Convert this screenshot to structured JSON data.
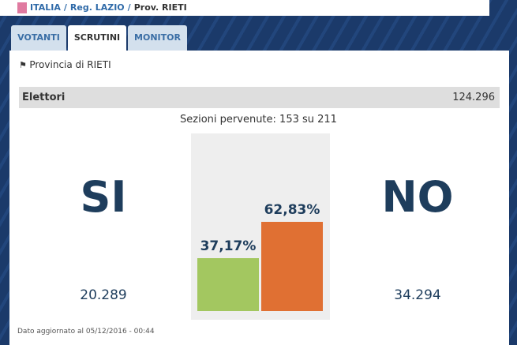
{
  "breadcrumb": [
    "ITALIA",
    "/",
    "Reg. LAZIO",
    "/",
    "Prov. RIETI"
  ],
  "tabs": [
    "VOTANTI",
    "SCRUTINI",
    "MONITOR"
  ],
  "province": "Provincia di RIETI",
  "electors": {
    "label": "Elettori",
    "value": "124.296"
  },
  "sections": "Sezioni pervenute: 153 su 211",
  "chart_data": {
    "type": "bar",
    "categories": [
      "SI",
      "NO"
    ],
    "values": [
      37.17,
      62.83
    ],
    "value_labels": [
      "37,17%",
      "62,83%"
    ],
    "colors": [
      "#a3c760",
      "#e07033"
    ]
  },
  "votes": [
    "20.289",
    "34.294"
  ],
  "footer": "Dato aggiornato al 05/12/2016 - 00:44"
}
